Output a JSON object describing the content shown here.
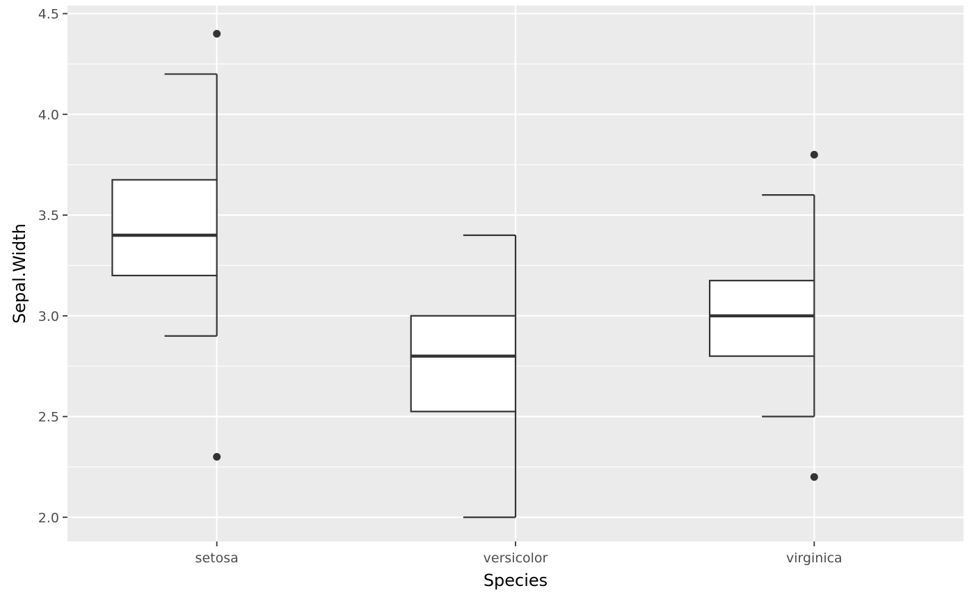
{
  "chart_data": {
    "type": "boxplot",
    "xlabel": "Species",
    "ylabel": "Sepal.Width",
    "categories": [
      "setosa",
      "versicolor",
      "virginica"
    ],
    "ylim": [
      1.88,
      4.54
    ],
    "y_ticks": [
      2.0,
      2.5,
      3.0,
      3.5,
      4.0,
      4.5
    ],
    "y_tick_labels": [
      "2.0",
      "2.5",
      "3.0",
      "3.5",
      "4.0",
      "4.5"
    ],
    "grid": true,
    "boxes": [
      {
        "category": "setosa",
        "whisker_low": 2.9,
        "q1": 3.2,
        "median": 3.4,
        "q3": 3.675,
        "whisker_high": 4.2,
        "outliers": [
          4.4,
          2.3
        ]
      },
      {
        "category": "versicolor",
        "whisker_low": 2.0,
        "q1": 2.525,
        "median": 2.8,
        "q3": 3.0,
        "whisker_high": 3.4,
        "outliers": []
      },
      {
        "category": "virginica",
        "whisker_low": 2.5,
        "q1": 2.8,
        "median": 3.0,
        "q3": 3.175,
        "whisker_high": 3.6,
        "outliers": [
          3.8,
          2.2
        ]
      }
    ],
    "colors": {
      "panel": "#ebebeb",
      "grid": "#ffffff",
      "box_fill": "#ffffff",
      "line": "#333333"
    }
  }
}
